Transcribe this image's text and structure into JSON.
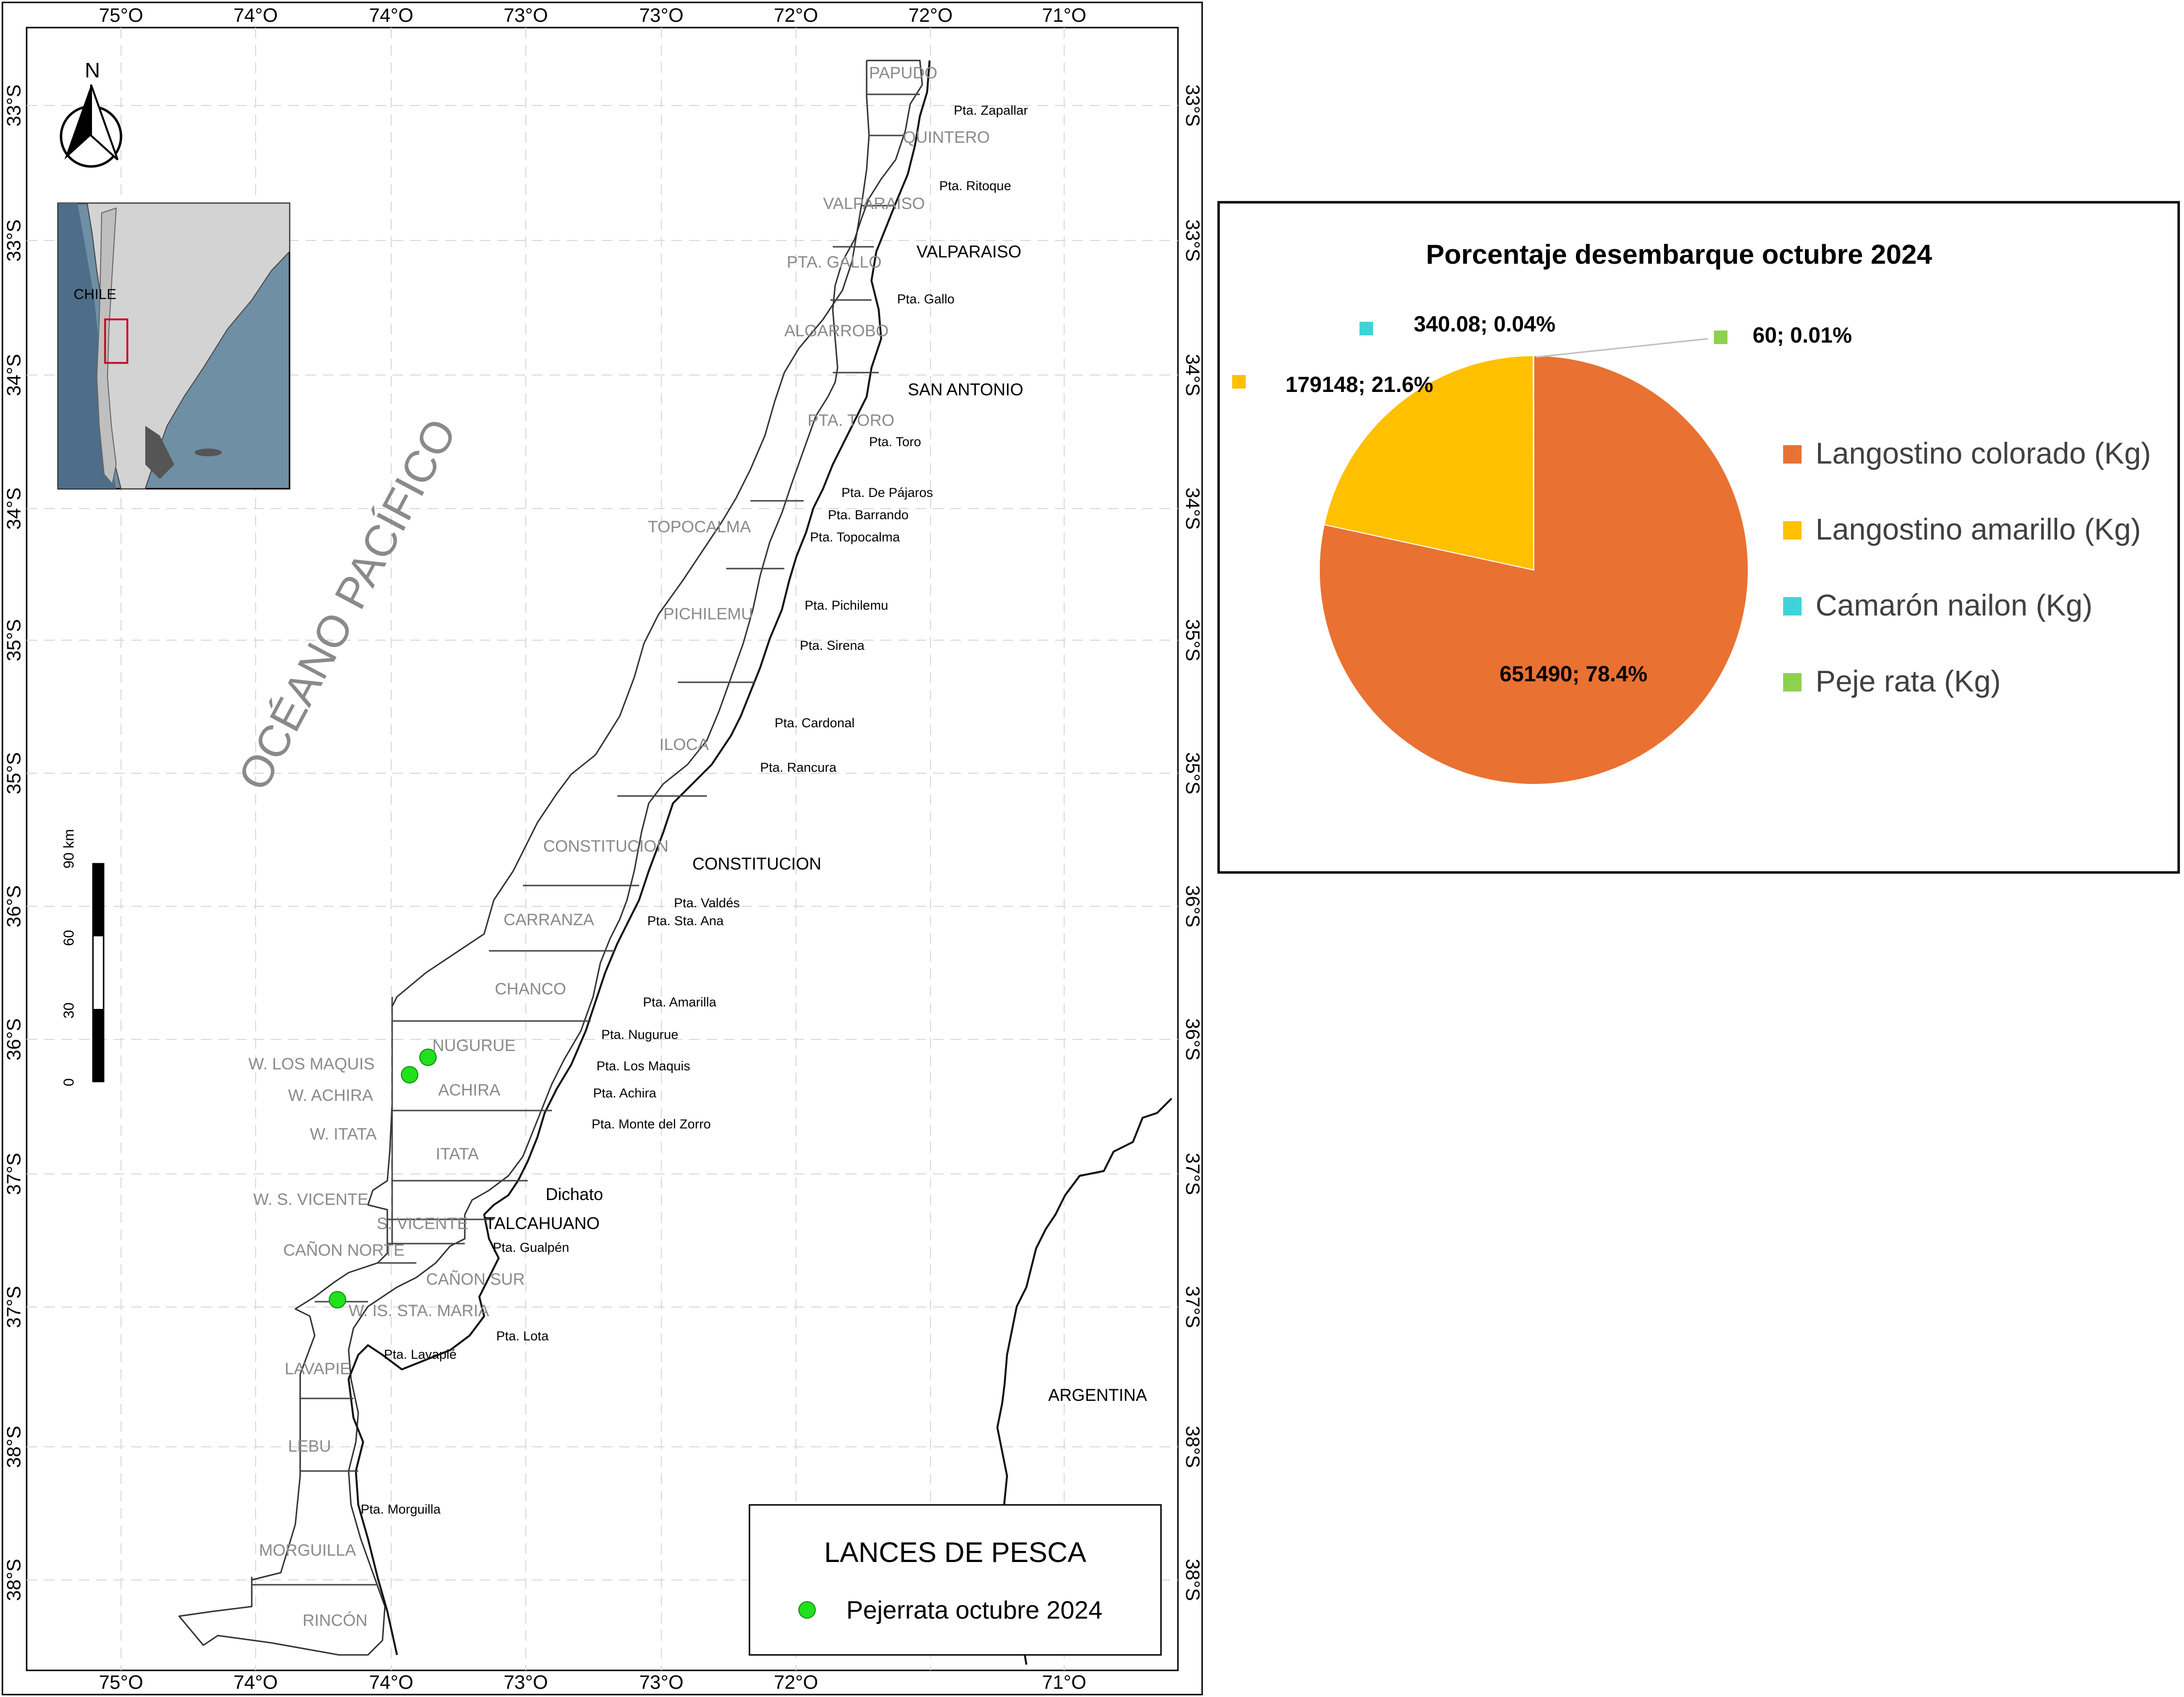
{
  "coordinates": {
    "top": [
      "75°O",
      "74°O",
      "74°O",
      "73°O",
      "73°O",
      "72°O",
      "72°O",
      "71°O"
    ],
    "bottom": [
      "75°O",
      "74°O",
      "74°O",
      "73°O",
      "73°O",
      "72°O",
      "71°O"
    ],
    "left": [
      "33°S",
      "33°S",
      "34°S",
      "34°S",
      "35°S",
      "35°S",
      "36°S",
      "36°S",
      "37°S",
      "37°S",
      "38°S",
      "38°S"
    ],
    "right": [
      "33°S",
      "33°S",
      "34°S",
      "34°S",
      "35°S",
      "35°S",
      "36°S",
      "36°S",
      "37°S",
      "37°S",
      "38°S",
      "38°S"
    ]
  },
  "north_arrow": "N",
  "inset": {
    "country_label": "CHILE"
  },
  "ocean_label": "OCÉANO PACÍFICO",
  "scale_bar": {
    "labels": [
      "0",
      "30",
      "60",
      "90 km"
    ]
  },
  "zones": [
    "PAPUDO",
    "QUINTERO",
    "VALPARAISO",
    "PTA. GALLO",
    "ALGARROBO",
    "PTA. TORO",
    "TOPOCALMA",
    "PICHILEMU",
    "ILOCA",
    "CONSTITUCION",
    "CARRANZA",
    "CHANCO",
    "NUGURUE",
    "ACHIRA",
    "ITATA",
    "S. VICENTE",
    "CAÑON SUR",
    "W. IS. STA. MARIA",
    "LAVAPIE",
    "LEBU",
    "MORGUILLA",
    "RINCÓN",
    "W. LOS MAQUIS",
    "W. ACHIRA",
    "W. ITATA",
    "W. S. VICENTE",
    "CAÑON NORTE"
  ],
  "points": [
    "Pta. Zapallar",
    "Pta. Ritoque",
    "Pta. Gallo",
    "Pta. Toro",
    "Pta. De Pájaros",
    "Pta. Barrando",
    "Pta. Topocalma",
    "Pta. Pichilemu",
    "Pta. Sirena",
    "Pta. Cardonal",
    "Pta. Rancura",
    "Pta. Valdés",
    "Pta. Sta. Ana",
    "Pta. Amarilla",
    "Pta. Nugurue",
    "Pta. Los Maquis",
    "Pta. Achira",
    "Pta. Monte del Zorro",
    "Pta. Gualpén",
    "Pta. Lota",
    "Pta. Lavapié",
    "Pta. Morguilla"
  ],
  "cities": [
    "VALPARAISO",
    "SAN ANTONIO",
    "CONSTITUCION",
    "Dichato",
    "TALCAHUANO",
    "ARGENTINA"
  ],
  "legend": {
    "title": "LANCES DE PESCA",
    "item": "Pejerrata octubre 2024",
    "color": "#22e01e"
  },
  "chart_data": {
    "type": "pie",
    "title": "Porcentaje desembarque octubre 2024",
    "categories": [
      "Langostino colorado (Kg)",
      "Langostino amarillo (Kg)",
      "Camarón nailon (Kg)",
      "Peje rata (Kg)"
    ],
    "values": [
      651490,
      179148,
      340.08,
      60
    ],
    "percent_labels": [
      "78.4%",
      "21.6%",
      "0.04%",
      "0.01%"
    ],
    "data_labels": [
      "651490; 78.4%",
      "179148; 21.6%",
      "340.08; 0.04%",
      "60; 0.01%"
    ],
    "colors": [
      "#e97132",
      "#ffc000",
      "#3fd3d9",
      "#8fd14f"
    ],
    "legend_position": "right"
  }
}
